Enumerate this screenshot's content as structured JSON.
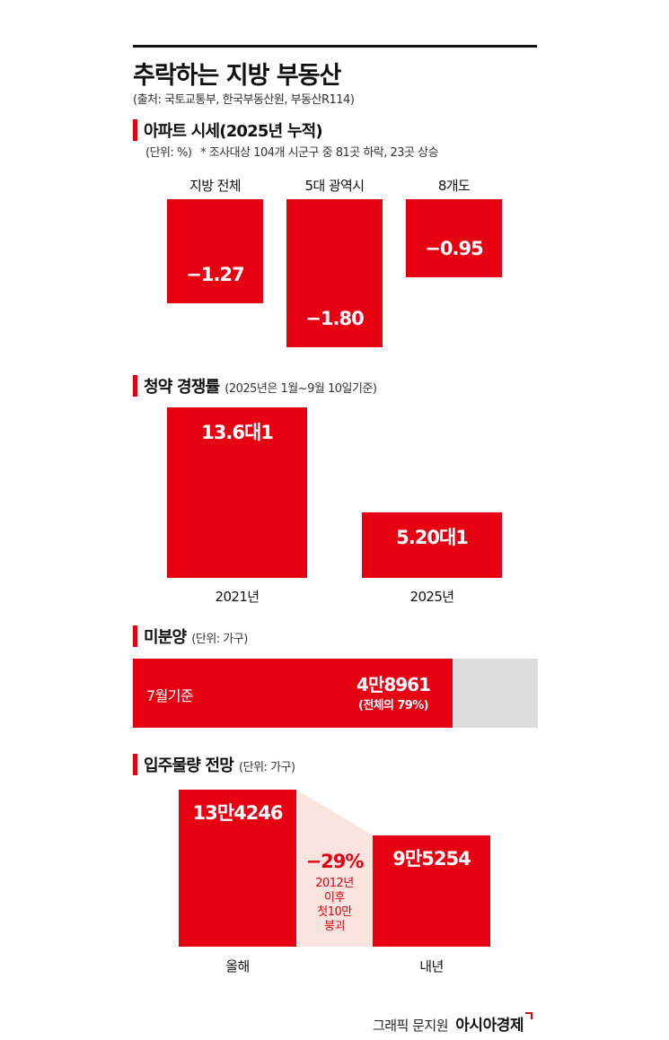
{
  "header": {
    "title": "추락하는 지방 부동산",
    "source": "(출처: 국토교통부, 한국부동산원, 부동산R114)"
  },
  "chart_data": [
    {
      "type": "bar",
      "title": "아파트 시세(2025년 누적)",
      "unit_note": "(단위: %)",
      "footnote": "* 조사대상 104개 시군구 중 81곳 하락, 23곳 상승",
      "categories": [
        "지방 전체",
        "5대 광역시",
        "8개도"
      ],
      "values": [
        -1.27,
        -1.8,
        -0.95
      ],
      "value_labels": [
        "−1.27",
        "−1.80",
        "−0.95"
      ],
      "ylim": [
        -1.8,
        0
      ]
    },
    {
      "type": "bar",
      "title": "청약 경쟁률",
      "unit_note": "(2025년은 1월~9월 10일기준)",
      "categories": [
        "2021년",
        "2025년"
      ],
      "values": [
        13.6,
        5.2
      ],
      "value_labels": [
        "13.6대1",
        "5.20대1"
      ],
      "ylim": [
        0,
        13.6
      ]
    },
    {
      "type": "bar",
      "title": "미분양",
      "unit_note": "(단위: 가구)",
      "label": "7월기준",
      "value": 48961,
      "share_percent": 79,
      "value_label": "4만8961",
      "share_label": "(전체의 79%)"
    },
    {
      "type": "bar",
      "title": "입주물량 전망",
      "unit_note": "(단위: 가구)",
      "categories": [
        "올해",
        "내년"
      ],
      "values": [
        134246,
        95254
      ],
      "value_labels": [
        "13만4246",
        "9만5254"
      ],
      "change_label": "−29%",
      "change_note": [
        "2012년",
        "이후",
        "첫10만",
        "붕괴"
      ],
      "ylim": [
        0,
        134246
      ]
    }
  ],
  "footer": {
    "credit_prefix": "그래픽 문지원",
    "brand": "아시아경제"
  },
  "colors": {
    "accent": "#e60012",
    "track": "#dcdcdc",
    "connector": "#fbe3de"
  }
}
